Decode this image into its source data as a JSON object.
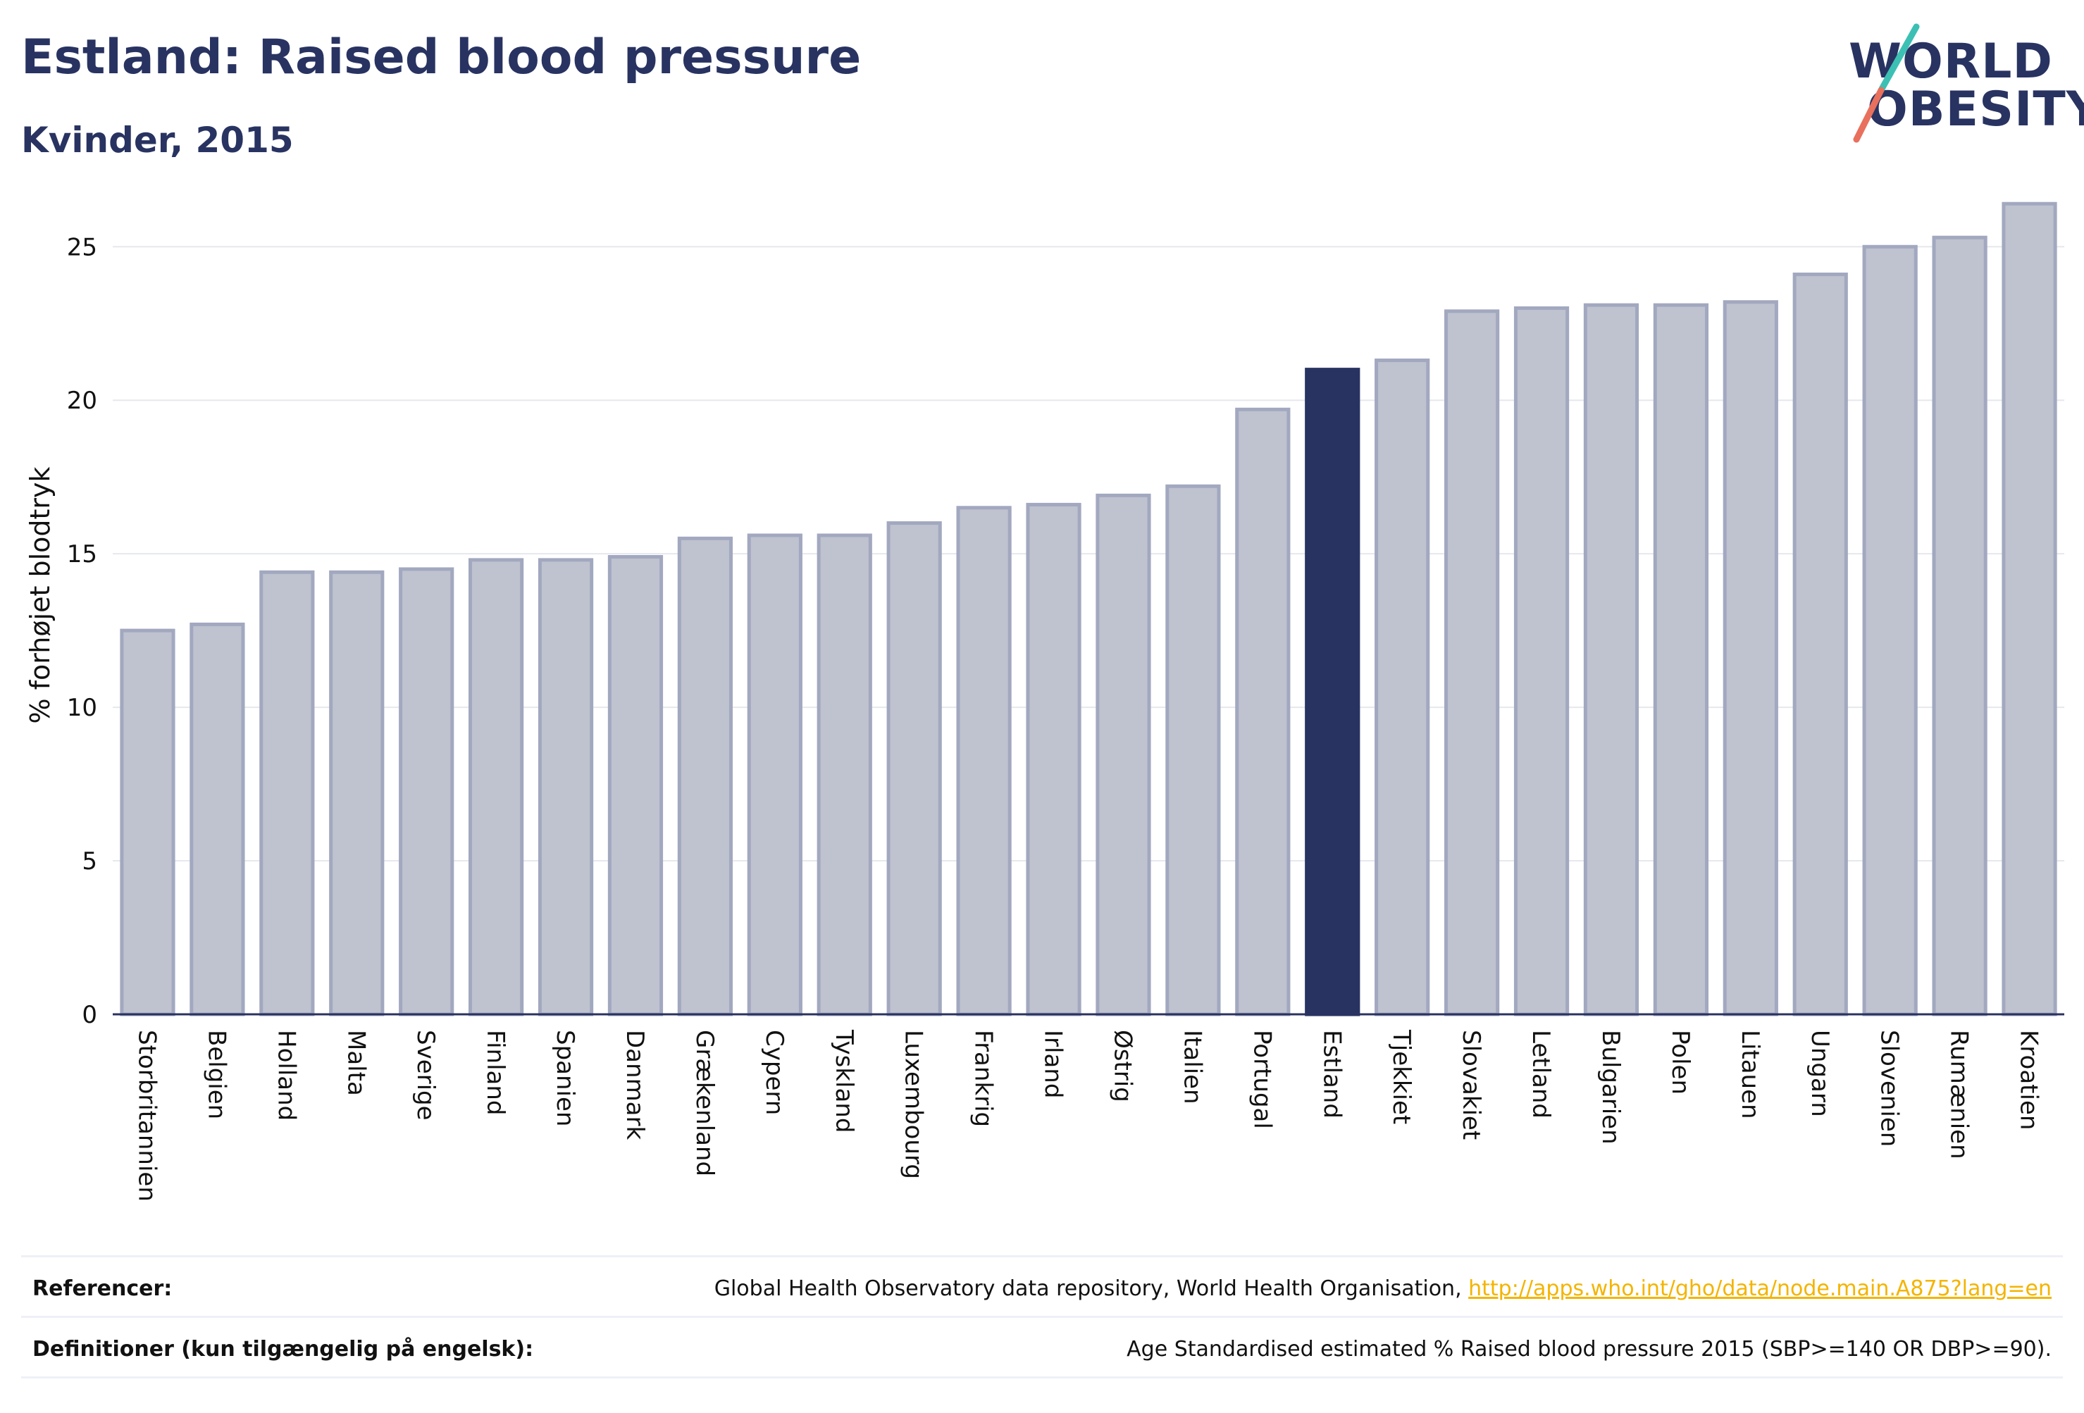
{
  "title": "Estland: Raised blood pressure",
  "subtitle": "Kvinder, 2015",
  "logo": {
    "line1": "WORLD",
    "line2": "OBESITY"
  },
  "colors": {
    "highlight": "#283361",
    "bar_fill": "#bfc2cf",
    "bar_stroke": "#a2a8bf",
    "axis": "#283361",
    "logo_teal": "#3cc0b4",
    "logo_red": "#e8705d",
    "link": "#f4b400"
  },
  "chart_data": {
    "type": "bar",
    "ylabel": "% forhøjet blodtryk",
    "ylim": [
      0,
      27.3
    ],
    "yticks": [
      0,
      5,
      10,
      15,
      20,
      25
    ],
    "grid": true,
    "highlight": "Estland",
    "categories": [
      "Storbritannien",
      "Belgien",
      "Holland",
      "Malta",
      "Sverige",
      "Finland",
      "Spanien",
      "Danmark",
      "Grækenland",
      "Cypern",
      "Tyskland",
      "Luxembourg",
      "Frankrig",
      "Irland",
      "Østrig",
      "Italien",
      "Portugal",
      "Estland",
      "Tjekkiet",
      "Slovakiet",
      "Letland",
      "Bulgarien",
      "Polen",
      "Litauen",
      "Ungarn",
      "Slovenien",
      "Rumænien",
      "Kroatien"
    ],
    "values": [
      12.5,
      12.7,
      14.4,
      14.4,
      14.5,
      14.8,
      14.8,
      14.9,
      15.5,
      15.6,
      15.6,
      16.0,
      16.5,
      16.6,
      16.9,
      17.2,
      19.7,
      21.0,
      21.3,
      22.9,
      23.0,
      23.1,
      23.1,
      23.2,
      24.1,
      25.0,
      25.3,
      26.4
    ]
  },
  "footer": {
    "references_label": "Referencer:",
    "references_text": "Global Health Observatory data repository, World Health Organisation, ",
    "references_link": "http://apps.who.int/gho/data/node.main.A875?lang=en",
    "definitions_label": "Definitioner (kun tilgængelig på engelsk):",
    "definitions_text": "Age Standardised estimated % Raised blood pressure 2015 (SBP>=140 OR DBP>=90)."
  }
}
